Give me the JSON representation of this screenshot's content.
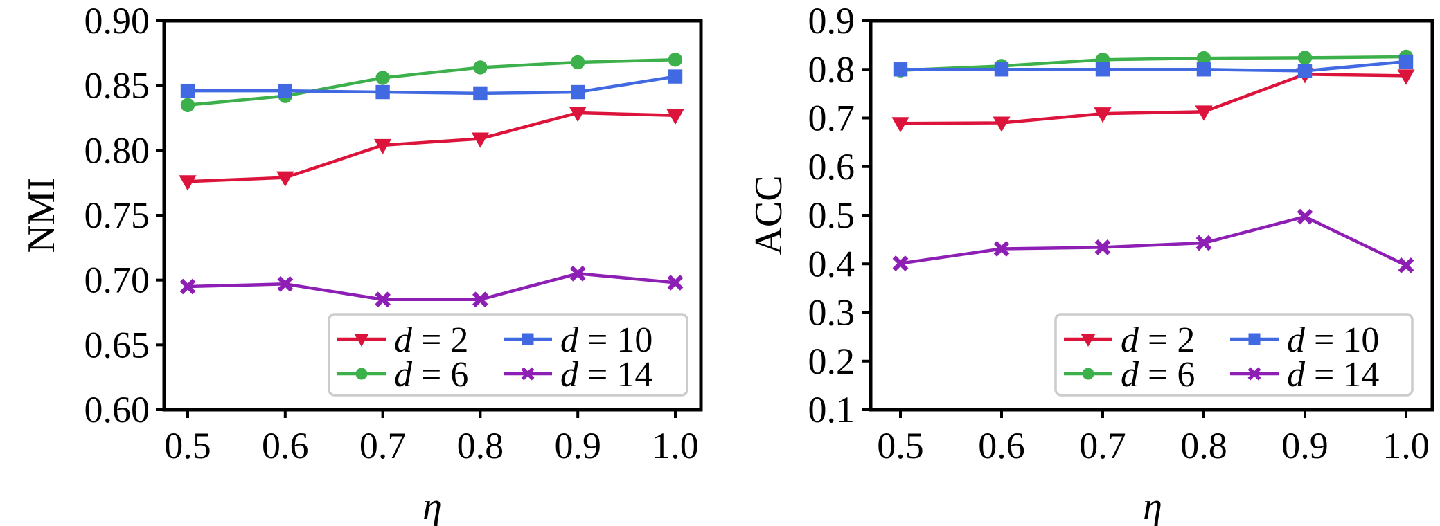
{
  "chart_data": [
    {
      "type": "line",
      "title": "",
      "xlabel": "η",
      "ylabel": "NMI",
      "x": [
        0.5,
        0.6,
        0.7,
        0.8,
        0.9,
        1.0
      ],
      "xticks": [
        "0.5",
        "0.6",
        "0.7",
        "0.8",
        "0.9",
        "1.0"
      ],
      "ylim": [
        0.6,
        0.9
      ],
      "yticks": [
        "0.60",
        "0.65",
        "0.70",
        "0.75",
        "0.80",
        "0.85",
        "0.90"
      ],
      "ytick_values": [
        0.6,
        0.65,
        0.7,
        0.75,
        0.8,
        0.85,
        0.9
      ],
      "grid": false,
      "legend_position": "lower-right",
      "series": [
        {
          "name": "d = 2",
          "d": "2",
          "marker": "triangle-down",
          "color": "#DC143C",
          "values": [
            0.776,
            0.779,
            0.804,
            0.809,
            0.829,
            0.827
          ]
        },
        {
          "name": "d = 6",
          "d": "6",
          "marker": "circle",
          "color": "#3CB04A",
          "values": [
            0.835,
            0.842,
            0.856,
            0.864,
            0.868,
            0.87
          ]
        },
        {
          "name": "d = 10",
          "d": "10",
          "marker": "square",
          "color": "#4169E1",
          "values": [
            0.846,
            0.846,
            0.845,
            0.844,
            0.845,
            0.857
          ]
        },
        {
          "name": "d = 14",
          "d": "14",
          "marker": "x-filled",
          "color": "#8E1FB5",
          "values": [
            0.695,
            0.697,
            0.685,
            0.685,
            0.705,
            0.698
          ]
        }
      ]
    },
    {
      "type": "line",
      "title": "",
      "xlabel": "η",
      "ylabel": "ACC",
      "x": [
        0.5,
        0.6,
        0.7,
        0.8,
        0.9,
        1.0
      ],
      "xticks": [
        "0.5",
        "0.6",
        "0.7",
        "0.8",
        "0.9",
        "1.0"
      ],
      "ylim": [
        0.1,
        0.9
      ],
      "yticks": [
        "0.1",
        "0.2",
        "0.3",
        "0.4",
        "0.5",
        "0.6",
        "0.7",
        "0.8",
        "0.9"
      ],
      "ytick_values": [
        0.1,
        0.2,
        0.3,
        0.4,
        0.5,
        0.6,
        0.7,
        0.8,
        0.9
      ],
      "grid": false,
      "legend_position": "lower-right",
      "series": [
        {
          "name": "d = 2",
          "d": "2",
          "marker": "triangle-down",
          "color": "#DC143C",
          "values": [
            0.689,
            0.69,
            0.709,
            0.713,
            0.79,
            0.787
          ]
        },
        {
          "name": "d = 6",
          "d": "6",
          "marker": "circle",
          "color": "#3CB04A",
          "values": [
            0.798,
            0.807,
            0.82,
            0.823,
            0.824,
            0.826
          ]
        },
        {
          "name": "d = 10",
          "d": "10",
          "marker": "square",
          "color": "#4169E1",
          "values": [
            0.8,
            0.8,
            0.8,
            0.8,
            0.797,
            0.816
          ]
        },
        {
          "name": "d = 14",
          "d": "14",
          "marker": "x-filled",
          "color": "#8E1FB5",
          "values": [
            0.401,
            0.431,
            0.434,
            0.443,
            0.497,
            0.397
          ]
        }
      ]
    }
  ]
}
